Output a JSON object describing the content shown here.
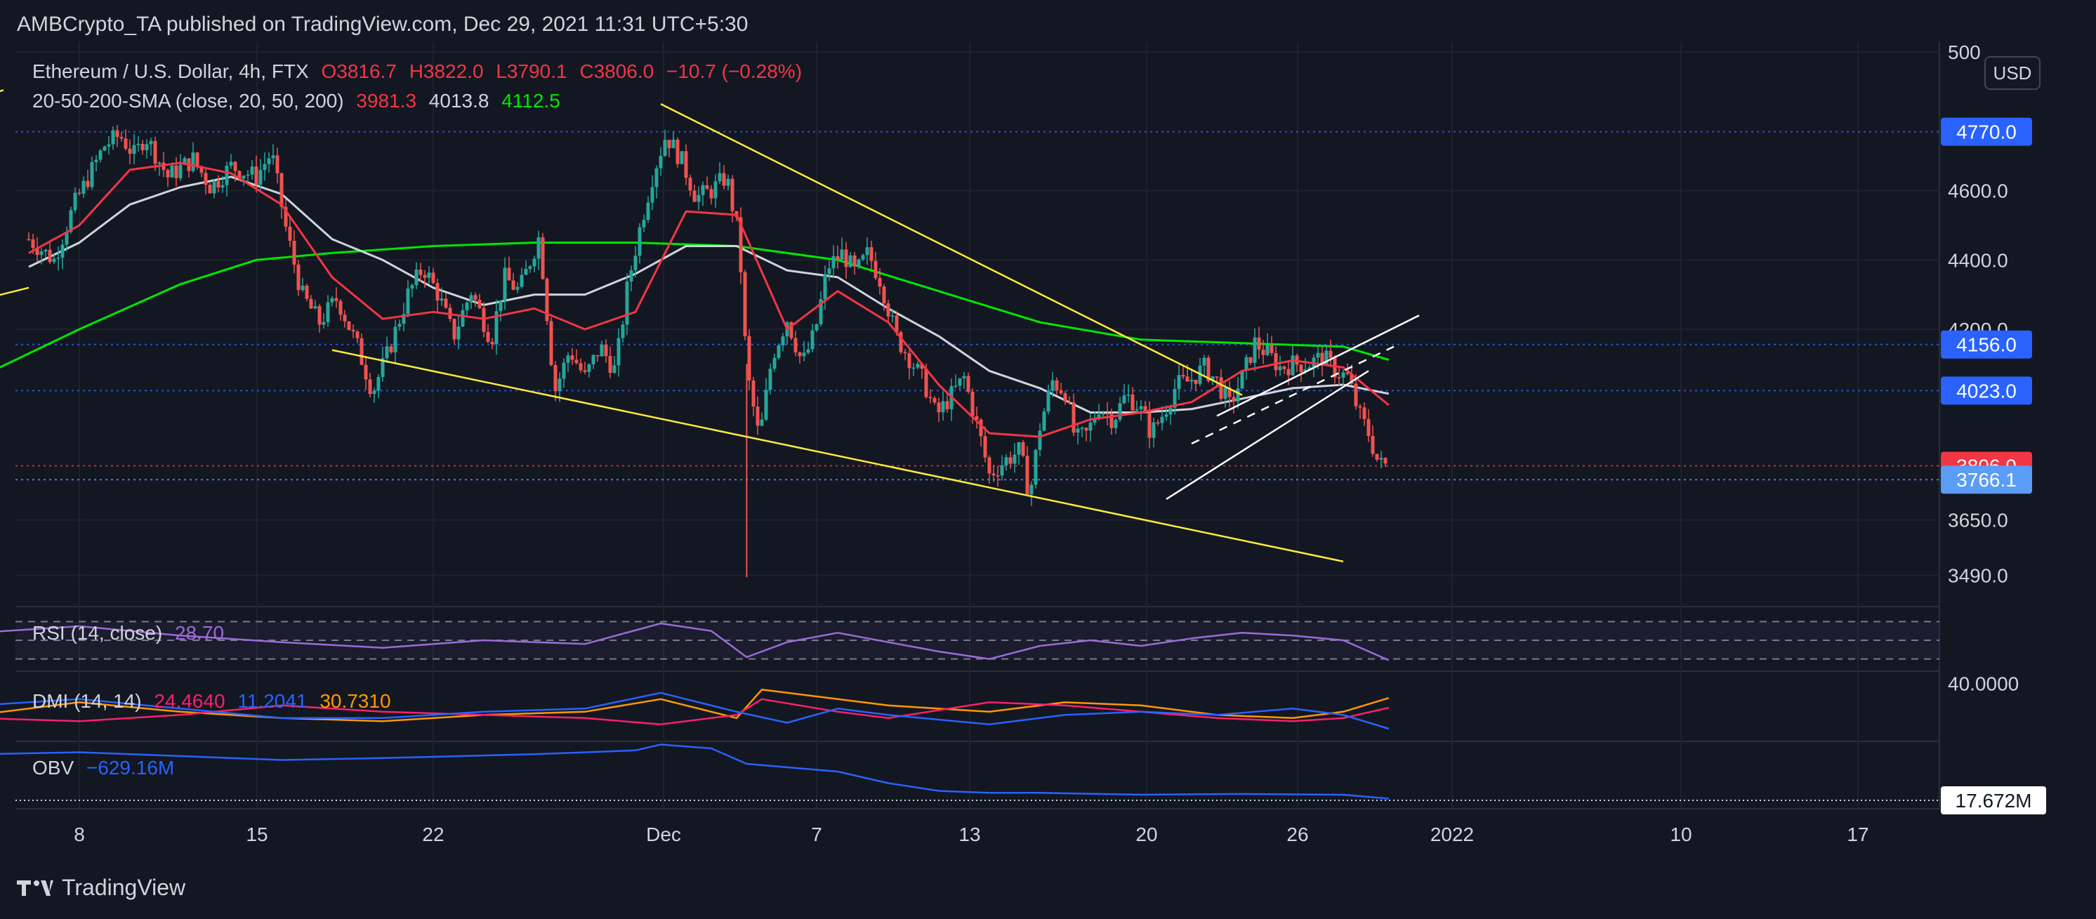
{
  "header": {
    "publisher": "AMBCrypto_TA published on TradingView.com, Dec 29, 2021 11:31 UTC+5:30"
  },
  "symbol_legend": {
    "name": "Ethereum / U.S. Dollar, 4h, FTX",
    "open": "O3816.7",
    "high": "H3822.0",
    "low": "L3790.1",
    "close": "C3806.0",
    "change": "−10.7 (−0.28%)"
  },
  "sma_legend": {
    "name": "20-50-200-SMA (close, 20, 50, 200)",
    "v20": "3981.3",
    "v50": "4013.8",
    "v200": "4112.5"
  },
  "rsi_legend": {
    "name": "RSI (14, close)",
    "value": "28.70"
  },
  "dmi_legend": {
    "name": "DMI (14, 14)",
    "v1": "24.4640",
    "v2": "11.2041",
    "v3": "30.7310"
  },
  "obv_legend": {
    "name": "OBV",
    "value": "−629.16M"
  },
  "currency_button": "USD",
  "footer": {
    "brand": "TradingView"
  },
  "colors": {
    "background": "#131722",
    "up": "#26a69a",
    "down": "#ef5350",
    "sma20": "#f23645",
    "sma50": "#d1d4dc",
    "sma200": "#00e600",
    "trendline": "#ffeb3b",
    "channel": "#ffffff",
    "rsi": "#9c6bd6",
    "dmi_plus": "#2962ff",
    "dmi_minus": "#f7216b",
    "adx": "#ff9800",
    "obv": "#2962ff"
  },
  "chart_data": {
    "type": "candlestick",
    "x_ticks": [
      "8",
      "15",
      "22",
      "Dec",
      "7",
      "13",
      "20",
      "26",
      "2022",
      "10",
      "17"
    ],
    "y_ticks": [
      "500",
      "4600.0",
      "4400.0",
      "4200.0",
      "3650.0",
      "3490.0"
    ],
    "price_labels": [
      {
        "text": "4770.0",
        "value": 4770,
        "color": "#2962ff"
      },
      {
        "text": "4156.0",
        "value": 4156,
        "color": "#2962ff"
      },
      {
        "text": "4023.0",
        "value": 4023,
        "color": "#2962ff"
      },
      {
        "text": "3806.0",
        "value": 3806,
        "color": "#f23645"
      },
      {
        "text": "3766.1",
        "value": 3766.1,
        "color": "#5b9cf6"
      }
    ],
    "dmi_axis_label": "40.0000",
    "obv_label": "17.672M",
    "ylim": [
      3400,
      5000
    ],
    "price_path": [
      [
        6.0,
        4460
      ],
      [
        7.0,
        4400
      ],
      [
        7.8,
        4560
      ],
      [
        9.0,
        4730
      ],
      [
        9.6,
        4760
      ],
      [
        10.2,
        4700
      ],
      [
        10.6,
        4760
      ],
      [
        11.5,
        4640
      ],
      [
        12.5,
        4690
      ],
      [
        13.2,
        4610
      ],
      [
        14.0,
        4670
      ],
      [
        15.0,
        4640
      ],
      [
        15.6,
        4710
      ],
      [
        16.2,
        4480
      ],
      [
        16.8,
        4300
      ],
      [
        17.5,
        4220
      ],
      [
        18.2,
        4290
      ],
      [
        19.0,
        4150
      ],
      [
        19.6,
        4020
      ],
      [
        20.2,
        4130
      ],
      [
        21.0,
        4300
      ],
      [
        21.6,
        4380
      ],
      [
        22.2,
        4300
      ],
      [
        22.8,
        4180
      ],
      [
        23.5,
        4310
      ],
      [
        24.3,
        4170
      ],
      [
        24.8,
        4350
      ],
      [
        25.4,
        4310
      ],
      [
        26.2,
        4470
      ],
      [
        26.8,
        4020
      ],
      [
        27.4,
        4140
      ],
      [
        28.0,
        4060
      ],
      [
        28.6,
        4150
      ],
      [
        29.2,
        4080
      ],
      [
        29.7,
        4330
      ],
      [
        30.2,
        4500
      ],
      [
        30.7,
        4650
      ],
      [
        31.2,
        4760
      ],
      [
        31.8,
        4690
      ],
      [
        32.4,
        4580
      ],
      [
        33.0,
        4600
      ],
      [
        33.6,
        4640
      ],
      [
        34.1,
        4460
      ],
      [
        34.4,
        4080
      ],
      [
        34.9,
        3880
      ],
      [
        35.4,
        4120
      ],
      [
        36.0,
        4230
      ],
      [
        36.6,
        4100
      ],
      [
        37.1,
        4190
      ],
      [
        37.6,
        4380
      ],
      [
        38.2,
        4420
      ],
      [
        38.7,
        4360
      ],
      [
        39.2,
        4420
      ],
      [
        39.7,
        4340
      ],
      [
        40.3,
        4180
      ],
      [
        40.9,
        4110
      ],
      [
        41.4,
        4050
      ],
      [
        41.9,
        3950
      ],
      [
        42.4,
        4000
      ],
      [
        43.0,
        4060
      ],
      [
        43.6,
        3900
      ],
      [
        44.0,
        3780
      ],
      [
        44.6,
        3820
      ],
      [
        45.2,
        3850
      ],
      [
        45.6,
        3720
      ],
      [
        46.0,
        3920
      ],
      [
        46.5,
        4050
      ],
      [
        47.0,
        4020
      ],
      [
        47.4,
        3880
      ],
      [
        47.9,
        3900
      ],
      [
        48.3,
        3980
      ],
      [
        48.9,
        3940
      ],
      [
        49.4,
        4010
      ],
      [
        49.9,
        3980
      ],
      [
        50.4,
        3900
      ],
      [
        50.9,
        3960
      ],
      [
        51.4,
        4040
      ],
      [
        51.9,
        4050
      ],
      [
        52.5,
        4090
      ],
      [
        53.0,
        4050
      ],
      [
        53.5,
        3980
      ],
      [
        54.0,
        4060
      ],
      [
        54.5,
        4160
      ],
      [
        55.0,
        4130
      ],
      [
        55.5,
        4090
      ],
      [
        56.0,
        4100
      ],
      [
        56.6,
        4100
      ],
      [
        57.2,
        4120
      ],
      [
        57.7,
        4080
      ],
      [
        58.2,
        4060
      ],
      [
        58.6,
        3960
      ],
      [
        59.0,
        3900
      ],
      [
        59.4,
        3810
      ],
      [
        59.8,
        3806
      ]
    ],
    "sma20": [
      [
        6,
        4420
      ],
      [
        8,
        4500
      ],
      [
        10,
        4660
      ],
      [
        12,
        4680
      ],
      [
        14,
        4650
      ],
      [
        16,
        4560
      ],
      [
        18,
        4350
      ],
      [
        20,
        4230
      ],
      [
        22,
        4250
      ],
      [
        24,
        4230
      ],
      [
        26,
        4260
      ],
      [
        28,
        4200
      ],
      [
        30,
        4250
      ],
      [
        32,
        4540
      ],
      [
        34,
        4530
      ],
      [
        36,
        4200
      ],
      [
        38,
        4310
      ],
      [
        40,
        4220
      ],
      [
        42,
        4040
      ],
      [
        44,
        3900
      ],
      [
        46,
        3890
      ],
      [
        48,
        3940
      ],
      [
        50,
        3960
      ],
      [
        52,
        3990
      ],
      [
        54,
        4080
      ],
      [
        56,
        4110
      ],
      [
        58,
        4090
      ],
      [
        59.8,
        3981
      ]
    ],
    "sma50": [
      [
        6,
        4380
      ],
      [
        8,
        4450
      ],
      [
        10,
        4560
      ],
      [
        12,
        4610
      ],
      [
        14,
        4640
      ],
      [
        16,
        4590
      ],
      [
        18,
        4460
      ],
      [
        20,
        4400
      ],
      [
        22,
        4320
      ],
      [
        24,
        4270
      ],
      [
        26,
        4300
      ],
      [
        28,
        4300
      ],
      [
        30,
        4360
      ],
      [
        32,
        4440
      ],
      [
        34,
        4440
      ],
      [
        36,
        4370
      ],
      [
        38,
        4350
      ],
      [
        40,
        4260
      ],
      [
        42,
        4180
      ],
      [
        44,
        4080
      ],
      [
        46,
        4030
      ],
      [
        48,
        3960
      ],
      [
        50,
        3960
      ],
      [
        52,
        3970
      ],
      [
        54,
        4000
      ],
      [
        56,
        4030
      ],
      [
        58,
        4040
      ],
      [
        59.8,
        4014
      ]
    ],
    "sma200": [
      [
        0.5,
        3960
      ],
      [
        4,
        4060
      ],
      [
        8,
        4200
      ],
      [
        12,
        4330
      ],
      [
        15,
        4400
      ],
      [
        18,
        4420
      ],
      [
        22,
        4440
      ],
      [
        26,
        4450
      ],
      [
        30,
        4450
      ],
      [
        34,
        4440
      ],
      [
        38,
        4400
      ],
      [
        42,
        4310
      ],
      [
        46,
        4220
      ],
      [
        50,
        4170
      ],
      [
        54,
        4160
      ],
      [
        58,
        4150
      ],
      [
        59.8,
        4112
      ]
    ],
    "trendlines": [
      {
        "color": "#ffeb3b",
        "dashed": false,
        "points": [
          [
            0.5,
            4220
          ],
          [
            6,
            4320
          ]
        ]
      },
      {
        "color": "#ffeb3b",
        "dashed": false,
        "points": [
          [
            0.5,
            4780
          ],
          [
            5,
            4890
          ]
        ]
      },
      {
        "color": "#ffeb3b",
        "dashed": false,
        "points": [
          [
            18,
            4140
          ],
          [
            58,
            3530
          ]
        ]
      },
      {
        "color": "#ffeb3b",
        "dashed": false,
        "points": [
          [
            31,
            4850
          ],
          [
            54,
            4010
          ]
        ]
      },
      {
        "color": "#ffffff",
        "dashed": false,
        "points": [
          [
            51,
            3710
          ],
          [
            59,
            4080
          ]
        ]
      },
      {
        "color": "#ffffff",
        "dashed": false,
        "points": [
          [
            53,
            3950
          ],
          [
            61,
            4240
          ]
        ]
      },
      {
        "color": "#ffffff",
        "dashed": true,
        "points": [
          [
            0.5,
            4560
          ],
          [
            3.5,
            4670
          ]
        ]
      },
      {
        "color": "#ffffff",
        "dashed": true,
        "points": [
          [
            52,
            3870
          ],
          [
            60,
            4150
          ]
        ]
      }
    ],
    "rsi_path": [
      [
        0.5,
        50
      ],
      [
        4,
        58
      ],
      [
        8,
        65
      ],
      [
        12,
        55
      ],
      [
        16,
        48
      ],
      [
        20,
        42
      ],
      [
        24,
        50
      ],
      [
        28,
        46
      ],
      [
        31,
        68
      ],
      [
        33,
        60
      ],
      [
        34.4,
        32
      ],
      [
        36,
        48
      ],
      [
        38,
        58
      ],
      [
        40,
        48
      ],
      [
        42,
        38
      ],
      [
        44,
        30
      ],
      [
        46,
        44
      ],
      [
        48,
        50
      ],
      [
        50,
        44
      ],
      [
        52,
        52
      ],
      [
        54,
        58
      ],
      [
        56,
        55
      ],
      [
        58,
        50
      ],
      [
        59.8,
        28.7
      ]
    ],
    "dmi_plus": [
      [
        0.5,
        22
      ],
      [
        4,
        26
      ],
      [
        8,
        30
      ],
      [
        12,
        24
      ],
      [
        16,
        18
      ],
      [
        20,
        18
      ],
      [
        24,
        22
      ],
      [
        28,
        24
      ],
      [
        31,
        34
      ],
      [
        34,
        22
      ],
      [
        36,
        15
      ],
      [
        38,
        24
      ],
      [
        40,
        20
      ],
      [
        44,
        14
      ],
      [
        47,
        20
      ],
      [
        50,
        22
      ],
      [
        53,
        20
      ],
      [
        56,
        24
      ],
      [
        58,
        20
      ],
      [
        59.8,
        11.2
      ]
    ],
    "dmi_minus": [
      [
        0.5,
        20
      ],
      [
        4,
        18
      ],
      [
        8,
        16
      ],
      [
        12,
        20
      ],
      [
        16,
        26
      ],
      [
        20,
        22
      ],
      [
        24,
        20
      ],
      [
        28,
        18
      ],
      [
        31,
        14
      ],
      [
        34,
        20
      ],
      [
        35,
        30
      ],
      [
        38,
        22
      ],
      [
        40,
        18
      ],
      [
        44,
        28
      ],
      [
        47,
        26
      ],
      [
        50,
        22
      ],
      [
        53,
        18
      ],
      [
        56,
        16
      ],
      [
        58,
        18
      ],
      [
        59.8,
        24.5
      ]
    ],
    "adx": [
      [
        0.5,
        24
      ],
      [
        4,
        20
      ],
      [
        8,
        28
      ],
      [
        12,
        22
      ],
      [
        16,
        18
      ],
      [
        20,
        16
      ],
      [
        24,
        20
      ],
      [
        28,
        22
      ],
      [
        31,
        30
      ],
      [
        34,
        18
      ],
      [
        35,
        36
      ],
      [
        38,
        30
      ],
      [
        40,
        26
      ],
      [
        44,
        22
      ],
      [
        47,
        28
      ],
      [
        50,
        26
      ],
      [
        53,
        20
      ],
      [
        56,
        18
      ],
      [
        58,
        22
      ],
      [
        59.8,
        30.7
      ]
    ],
    "obv_path": [
      [
        0.5,
        1.0
      ],
      [
        8,
        1.1
      ],
      [
        16,
        0.9
      ],
      [
        20,
        0.95
      ],
      [
        26,
        1.05
      ],
      [
        30,
        1.15
      ],
      [
        31,
        1.3
      ],
      [
        33,
        1.2
      ],
      [
        34.4,
        0.8
      ],
      [
        38,
        0.6
      ],
      [
        40,
        0.3
      ],
      [
        42,
        0.1
      ],
      [
        44,
        0.05
      ],
      [
        46,
        0.05
      ],
      [
        50,
        0.0
      ],
      [
        54,
        0.02
      ],
      [
        58,
        0.0
      ],
      [
        59.8,
        -0.1
      ]
    ]
  }
}
